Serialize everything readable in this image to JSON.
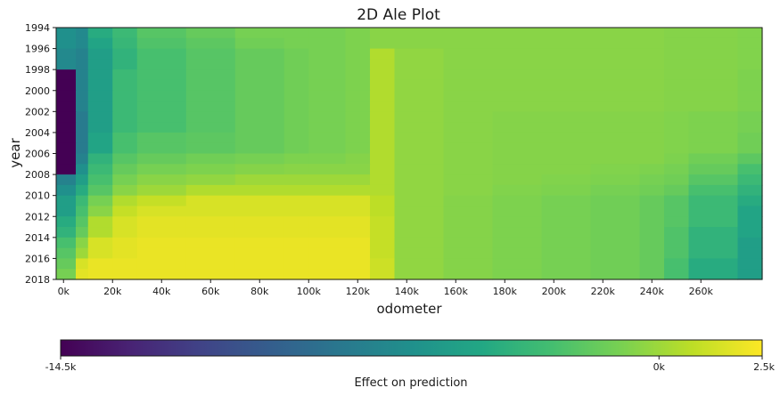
{
  "chart_data": {
    "type": "heatmap",
    "title": "2D Ale Plot",
    "xlabel": "odometer",
    "ylabel": "year",
    "x_ticks": [
      0,
      20000,
      40000,
      60000,
      80000,
      100000,
      120000,
      140000,
      160000,
      180000,
      200000,
      220000,
      240000,
      260000
    ],
    "x_tick_labels": [
      "0k",
      "20k",
      "40k",
      "60k",
      "80k",
      "100k",
      "120k",
      "140k",
      "160k",
      "180k",
      "200k",
      "220k",
      "240k",
      "260k"
    ],
    "xlim": [
      -3000,
      285000
    ],
    "y_ticks": [
      1994,
      1996,
      1998,
      2000,
      2002,
      2004,
      2006,
      2008,
      2010,
      2012,
      2014,
      2016,
      2018
    ],
    "y_tick_labels": [
      "1994",
      "1996",
      "1998",
      "2000",
      "2002",
      "2004",
      "2006",
      "2008",
      "2010",
      "2012",
      "2014",
      "2016",
      "2018"
    ],
    "ylim": [
      1994,
      2018
    ],
    "x_edges": [
      -3000,
      5000,
      10000,
      20000,
      30000,
      50000,
      70000,
      90000,
      100000,
      115000,
      125000,
      135000,
      155000,
      175000,
      195000,
      215000,
      235000,
      245000,
      255000,
      275000,
      285000
    ],
    "y_edges": [
      1994,
      1995,
      1996,
      1997,
      1998,
      1999,
      2000,
      2001,
      2002,
      2003,
      2004,
      2005,
      2006,
      2007,
      2008,
      2009,
      2010,
      2011,
      2012,
      2013,
      2014,
      2015,
      2016,
      2017,
      2018
    ],
    "values": [
      [
        -6.0,
        -6.5,
        -4.0,
        -3.0,
        -2.0,
        -1.5,
        -1.0,
        -1.0,
        -1.0,
        -0.8,
        -0.5,
        -0.5,
        -0.5,
        -0.5,
        -0.5,
        -0.5,
        -0.5,
        -0.6,
        -0.6,
        -0.7
      ],
      [
        -6.0,
        -6.5,
        -4.5,
        -3.2,
        -2.2,
        -1.8,
        -1.2,
        -1.0,
        -1.0,
        -0.8,
        -0.5,
        -0.5,
        -0.5,
        -0.5,
        -0.5,
        -0.5,
        -0.5,
        -0.6,
        -0.6,
        -0.7
      ],
      [
        -6.5,
        -7.0,
        -5.0,
        -3.5,
        -2.5,
        -2.0,
        -1.5,
        -1.2,
        -1.0,
        -0.8,
        0.5,
        -0.3,
        -0.5,
        -0.5,
        -0.5,
        -0.5,
        -0.5,
        -0.6,
        -0.6,
        -0.7
      ],
      [
        -6.5,
        -7.0,
        -5.0,
        -3.5,
        -2.5,
        -2.0,
        -1.5,
        -1.2,
        -1.0,
        -0.8,
        0.5,
        -0.3,
        -0.5,
        -0.5,
        -0.5,
        -0.5,
        -0.5,
        -0.6,
        -0.6,
        -0.7
      ],
      [
        -14.5,
        -7.0,
        -5.0,
        -3.0,
        -2.5,
        -2.0,
        -1.5,
        -1.2,
        -1.0,
        -0.8,
        0.5,
        -0.3,
        -0.5,
        -0.5,
        -0.5,
        -0.5,
        -0.5,
        -0.6,
        -0.6,
        -0.8
      ],
      [
        -14.5,
        -7.0,
        -5.0,
        -3.0,
        -2.5,
        -2.0,
        -1.5,
        -1.2,
        -1.0,
        -0.8,
        0.5,
        -0.3,
        -0.5,
        -0.5,
        -0.5,
        -0.5,
        -0.5,
        -0.6,
        -0.6,
        -0.8
      ],
      [
        -14.5,
        -7.0,
        -5.0,
        -3.0,
        -2.5,
        -2.0,
        -1.5,
        -1.2,
        -1.0,
        -0.8,
        0.5,
        -0.3,
        -0.5,
        -0.5,
        -0.5,
        -0.5,
        -0.5,
        -0.6,
        -0.6,
        -0.8
      ],
      [
        -14.5,
        -7.0,
        -5.0,
        -3.0,
        -2.5,
        -2.0,
        -1.5,
        -1.2,
        -1.0,
        -0.8,
        0.5,
        -0.3,
        -0.5,
        -0.5,
        -0.5,
        -0.5,
        -0.5,
        -0.6,
        -0.6,
        -0.8
      ],
      [
        -14.5,
        -7.5,
        -5.0,
        -3.0,
        -2.5,
        -2.0,
        -1.5,
        -1.2,
        -1.0,
        -0.8,
        0.5,
        -0.3,
        -0.5,
        -0.6,
        -0.6,
        -0.6,
        -0.6,
        -0.7,
        -0.8,
        -1.0
      ],
      [
        -14.5,
        -7.5,
        -5.0,
        -3.0,
        -2.5,
        -2.0,
        -1.5,
        -1.2,
        -1.0,
        -0.8,
        0.5,
        -0.3,
        -0.5,
        -0.6,
        -0.6,
        -0.6,
        -0.6,
        -0.7,
        -0.8,
        -1.0
      ],
      [
        -14.5,
        -7.5,
        -4.5,
        -2.5,
        -2.0,
        -1.8,
        -1.5,
        -1.2,
        -1.0,
        -0.8,
        0.5,
        -0.3,
        -0.5,
        -0.6,
        -0.6,
        -0.6,
        -0.6,
        -0.7,
        -0.8,
        -1.2
      ],
      [
        -14.5,
        -7.5,
        -4.5,
        -2.5,
        -2.0,
        -1.8,
        -1.5,
        -1.2,
        -1.0,
        -0.8,
        0.5,
        -0.3,
        -0.5,
        -0.6,
        -0.6,
        -0.6,
        -0.6,
        -0.7,
        -0.8,
        -1.2
      ],
      [
        -14.5,
        -7.0,
        -3.5,
        -2.0,
        -1.5,
        -1.2,
        -1.0,
        -0.8,
        -0.8,
        -0.6,
        0.5,
        -0.3,
        -0.5,
        -0.6,
        -0.6,
        -0.6,
        -0.6,
        -0.8,
        -1.2,
        -1.8
      ],
      [
        -14.5,
        -6.0,
        -3.0,
        -1.5,
        -1.0,
        -0.8,
        -0.6,
        -0.5,
        -0.5,
        -0.5,
        0.5,
        -0.3,
        -0.5,
        -0.6,
        -0.6,
        -0.7,
        -0.8,
        -1.0,
        -1.5,
        -2.5
      ],
      [
        -7.0,
        -5.0,
        -2.5,
        -1.0,
        -0.5,
        -0.3,
        0.0,
        0.0,
        0.0,
        0.0,
        0.5,
        -0.3,
        -0.5,
        -0.6,
        -0.7,
        -0.8,
        -1.0,
        -1.2,
        -2.0,
        -3.0
      ],
      [
        -6.0,
        -4.0,
        -2.0,
        -0.5,
        0.0,
        0.5,
        0.5,
        0.5,
        0.5,
        0.5,
        0.5,
        -0.3,
        -0.5,
        -0.7,
        -0.8,
        -1.0,
        -1.2,
        -1.5,
        -2.5,
        -3.5
      ],
      [
        -5.0,
        -3.0,
        -1.0,
        0.5,
        1.0,
        1.5,
        1.5,
        1.5,
        1.5,
        1.5,
        0.8,
        -0.3,
        -0.6,
        -0.8,
        -1.0,
        -1.2,
        -1.5,
        -2.0,
        -3.0,
        -4.0
      ],
      [
        -5.0,
        -2.5,
        -0.5,
        1.0,
        1.5,
        1.5,
        1.5,
        1.5,
        1.5,
        1.5,
        0.8,
        -0.3,
        -0.6,
        -0.8,
        -1.0,
        -1.2,
        -1.5,
        -2.0,
        -3.0,
        -4.5
      ],
      [
        -4.0,
        -2.0,
        0.5,
        1.5,
        1.8,
        1.8,
        1.8,
        1.8,
        1.8,
        1.8,
        1.0,
        -0.3,
        -0.6,
        -0.8,
        -1.0,
        -1.2,
        -1.5,
        -2.0,
        -3.0,
        -4.5
      ],
      [
        -3.5,
        -1.5,
        0.5,
        1.5,
        1.8,
        1.8,
        1.8,
        1.8,
        1.8,
        1.8,
        1.0,
        -0.3,
        -0.6,
        -0.8,
        -1.0,
        -1.2,
        -1.5,
        -2.2,
        -3.5,
        -4.5
      ],
      [
        -2.5,
        -0.5,
        1.5,
        1.8,
        2.0,
        2.0,
        2.0,
        2.0,
        2.0,
        2.0,
        1.0,
        -0.3,
        -0.6,
        -0.8,
        -1.0,
        -1.2,
        -1.5,
        -2.2,
        -3.5,
        -5.0
      ],
      [
        -2.0,
        0.0,
        1.5,
        1.8,
        2.0,
        2.0,
        2.0,
        2.0,
        2.0,
        2.0,
        1.0,
        -0.3,
        -0.6,
        -0.8,
        -1.0,
        -1.2,
        -1.5,
        -2.2,
        -3.5,
        -5.0
      ],
      [
        -1.5,
        1.5,
        2.0,
        2.0,
        2.0,
        2.0,
        2.0,
        2.0,
        2.0,
        2.0,
        1.2,
        -0.3,
        -0.6,
        -0.8,
        -1.0,
        -1.2,
        -1.5,
        -2.5,
        -4.0,
        -5.0
      ],
      [
        -1.0,
        1.8,
        2.0,
        2.0,
        2.0,
        2.0,
        2.0,
        2.0,
        2.0,
        2.0,
        1.2,
        -0.3,
        -0.6,
        -0.8,
        -1.0,
        -1.2,
        -1.5,
        -2.5,
        -4.0,
        -5.0
      ]
    ],
    "colormap": "viridis",
    "colorbar": {
      "label": "Effect on prediction",
      "min": -14500,
      "max": 2500,
      "ticks": [
        -14500,
        0,
        2500
      ],
      "tick_labels": [
        "-14.5k",
        "0k",
        "2.5k"
      ],
      "placement": "bottom"
    },
    "grid": false
  }
}
